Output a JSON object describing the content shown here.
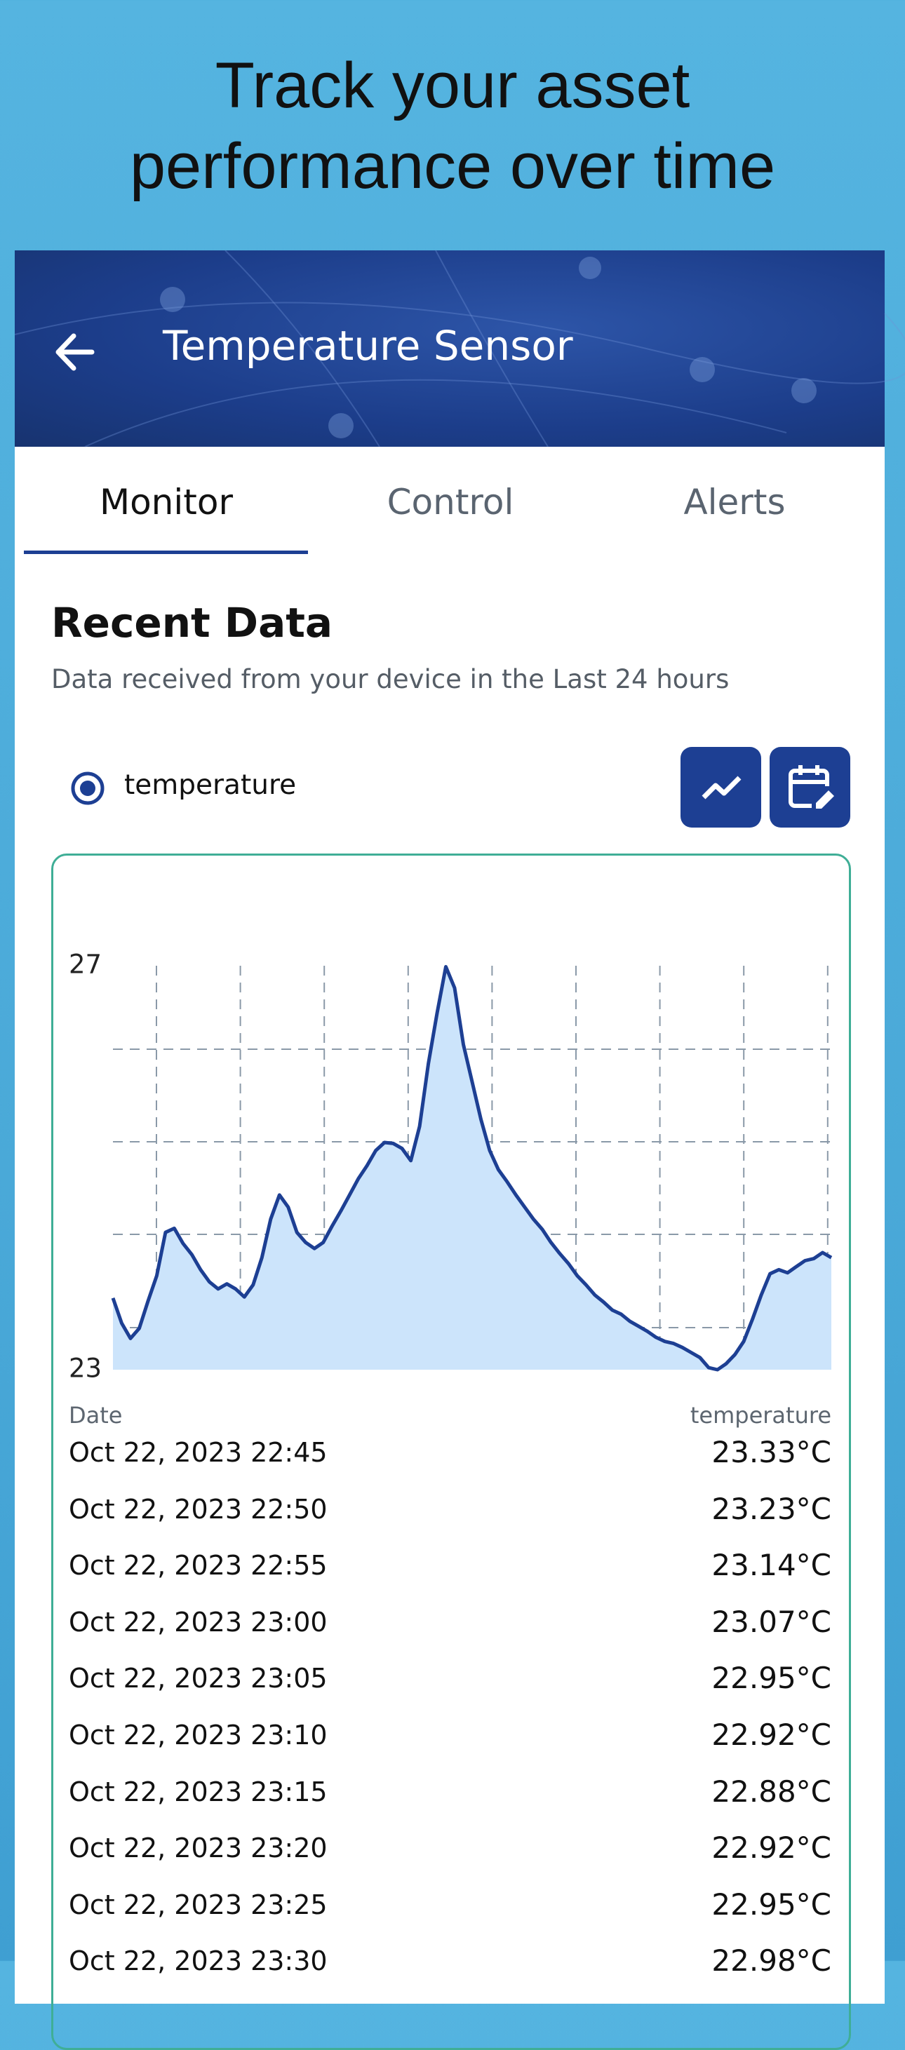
{
  "headline": [
    "Track your asset",
    "performance over time"
  ],
  "header": {
    "title": "Temperature Sensor"
  },
  "tabs": [
    "Monitor",
    "Control",
    "Alerts"
  ],
  "section": {
    "title": "Recent Data",
    "subtitle": "Data received from your device in the Last 24 hours"
  },
  "chart_data": {
    "type": "line",
    "ylim": [
      23,
      27
    ],
    "yticks": [
      23,
      27
    ],
    "fill": "#cce4fb",
    "series": [
      {
        "name": "temperature",
        "color": "#1d3f93",
        "values": [
          23.71,
          23.46,
          23.31,
          23.41,
          23.68,
          23.93,
          24.36,
          24.4,
          24.25,
          24.14,
          23.99,
          23.87,
          23.8,
          23.85,
          23.8,
          23.72,
          23.84,
          24.11,
          24.49,
          24.73,
          24.61,
          24.36,
          24.26,
          24.2,
          24.26,
          24.42,
          24.57,
          24.73,
          24.89,
          25.02,
          25.17,
          25.25,
          25.24,
          25.19,
          25.07,
          25.41,
          26.03,
          26.53,
          26.99,
          26.78,
          26.22,
          25.85,
          25.48,
          25.17,
          24.98,
          24.86,
          24.73,
          24.61,
          24.49,
          24.39,
          24.26,
          24.15,
          24.05,
          23.93,
          23.84,
          23.74,
          23.67,
          23.59,
          23.55,
          23.48,
          23.43,
          23.38,
          23.32,
          23.28,
          23.26,
          23.22,
          23.17,
          23.12,
          23.02,
          23.0,
          23.06,
          23.15,
          23.28,
          23.5,
          23.74,
          23.95,
          23.99,
          23.96,
          24.02,
          24.08,
          24.1,
          24.16,
          24.11
        ]
      }
    ]
  },
  "table": {
    "headers": [
      "Date",
      "temperature"
    ],
    "rows": [
      [
        "Oct 22, 2023 22:45",
        "23.33°C"
      ],
      [
        "Oct 22, 2023 22:50",
        "23.23°C"
      ],
      [
        "Oct 22, 2023 22:55",
        "23.14°C"
      ],
      [
        "Oct 22, 2023 23:00",
        "23.07°C"
      ],
      [
        "Oct 22, 2023 23:05",
        "22.95°C"
      ],
      [
        "Oct 22, 2023 23:10",
        "22.92°C"
      ],
      [
        "Oct 22, 2023 23:15",
        "22.88°C"
      ],
      [
        "Oct 22, 2023 23:20",
        "22.92°C"
      ],
      [
        "Oct 22, 2023 23:25",
        "22.95°C"
      ],
      [
        "Oct 22, 2023 23:30",
        "22.98°C"
      ]
    ]
  }
}
